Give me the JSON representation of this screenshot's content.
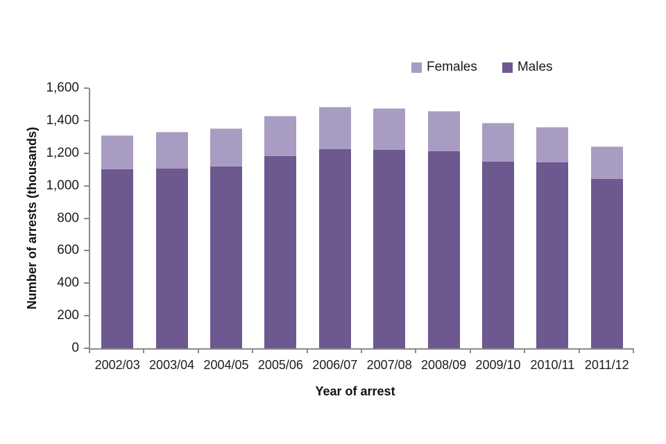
{
  "chart_data": {
    "type": "bar",
    "stacked": true,
    "title": "",
    "categories": [
      "2002/03",
      "2003/04",
      "2004/05",
      "2005/06",
      "2006/07",
      "2007/08",
      "2008/09",
      "2009/10",
      "2010/11",
      "2011/12"
    ],
    "series": [
      {
        "name": "Males",
        "color": "#6d5890",
        "values": [
          1105,
          1110,
          1122,
          1185,
          1230,
          1225,
          1214,
          1152,
          1147,
          1046
        ]
      },
      {
        "name": "Females",
        "color": "#a89cc2",
        "values": [
          207,
          220,
          231,
          244,
          256,
          253,
          246,
          234,
          214,
          195
        ]
      }
    ],
    "totals": [
      1312,
      1330,
      1353,
      1429,
      1486,
      1478,
      1460,
      1386,
      1361,
      1241
    ],
    "xlabel": "Year of arrest",
    "ylabel": "Number of arrests (thousands)",
    "ylim": [
      0,
      1600
    ],
    "ytick_step": 200,
    "ytick_labels": [
      "0",
      "200",
      "400",
      "600",
      "800",
      "1,000",
      "1,200",
      "1,400",
      "1,600"
    ],
    "grid": false,
    "legend_position": "top-right"
  },
  "legend": {
    "items": [
      {
        "label": "Females",
        "color": "#a89cc2"
      },
      {
        "label": "Males",
        "color": "#6d5890"
      }
    ]
  },
  "axes": {
    "x_title": "Year of arrest",
    "y_title": "Number of arrests (thousands)"
  },
  "colors": {
    "axis": "#8a8a8a",
    "text": "#1c1c1c",
    "background": "#ffffff"
  }
}
